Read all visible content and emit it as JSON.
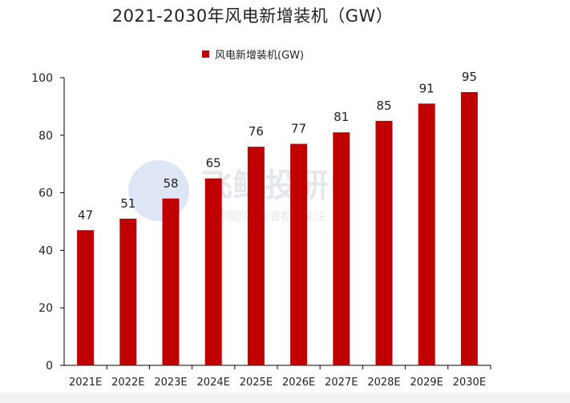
{
  "chart_data": {
    "type": "bar",
    "title": "2021-2030年风电新增装机（GW）",
    "categories": [
      "2021E",
      "2022E",
      "2023E",
      "2024E",
      "2025E",
      "2026E",
      "2027E",
      "2028E",
      "2029E",
      "2030E"
    ],
    "series": [
      {
        "name": "风电新增装机(GW)",
        "values": [
          47,
          51,
          58,
          65,
          76,
          77,
          81,
          85,
          91,
          95
        ],
        "color": "#C00000"
      }
    ],
    "ylim": [
      0,
      100
    ],
    "yticks": [
      0,
      20,
      40,
      60,
      80,
      100
    ],
    "legend": "top-center",
    "grid": false,
    "data_labels": true
  },
  "watermark": {
    "brand": "飞鲸投研",
    "subtitle": "聪明的投资者都在关注"
  }
}
